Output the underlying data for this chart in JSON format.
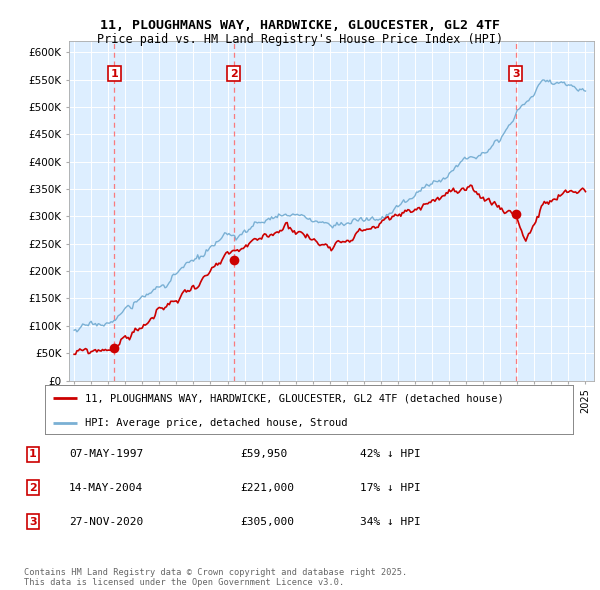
{
  "title": "11, PLOUGHMANS WAY, HARDWICKE, GLOUCESTER, GL2 4TF",
  "subtitle": "Price paid vs. HM Land Registry's House Price Index (HPI)",
  "ylim": [
    0,
    620000
  ],
  "yticks": [
    0,
    50000,
    100000,
    150000,
    200000,
    250000,
    300000,
    350000,
    400000,
    450000,
    500000,
    550000,
    600000
  ],
  "ytick_labels": [
    "£0",
    "£50K",
    "£100K",
    "£150K",
    "£200K",
    "£250K",
    "£300K",
    "£350K",
    "£400K",
    "£450K",
    "£500K",
    "£550K",
    "£600K"
  ],
  "xlim": [
    1994.7,
    2025.5
  ],
  "plot_bg_color": "#ddeeff",
  "transactions": [
    {
      "num": 1,
      "price": 59950,
      "year": 1997.35,
      "label": "07-MAY-1997",
      "amount": "£59,950",
      "pct": "42% ↓ HPI"
    },
    {
      "num": 2,
      "price": 221000,
      "year": 2004.37,
      "label": "14-MAY-2004",
      "amount": "£221,000",
      "pct": "17% ↓ HPI"
    },
    {
      "num": 3,
      "price": 305000,
      "year": 2020.91,
      "label": "27-NOV-2020",
      "amount": "£305,000",
      "pct": "34% ↓ HPI"
    }
  ],
  "legend_line1": "11, PLOUGHMANS WAY, HARDWICKE, GLOUCESTER, GL2 4TF (detached house)",
  "legend_line2": "HPI: Average price, detached house, Stroud",
  "footnote": "Contains HM Land Registry data © Crown copyright and database right 2025.\nThis data is licensed under the Open Government Licence v3.0.",
  "red_line_color": "#cc0000",
  "blue_line_color": "#7ab0d4",
  "dashed_color": "#ff6666"
}
